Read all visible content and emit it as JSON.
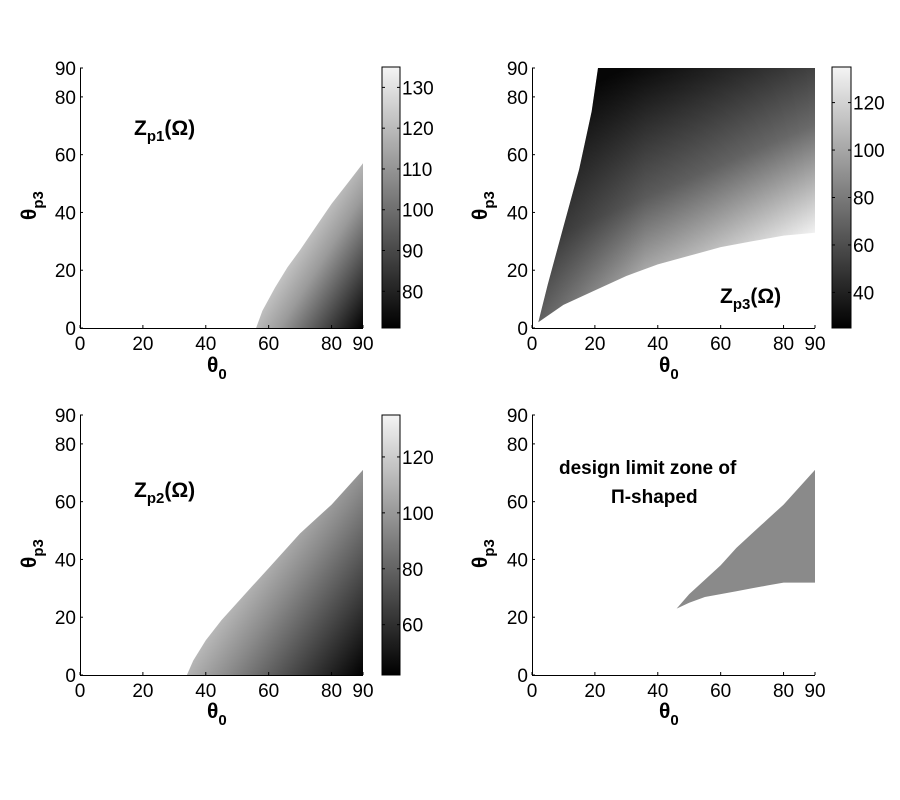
{
  "figure": {
    "background": "#ffffff"
  },
  "chart_data": [
    {
      "id": "zp1",
      "type": "heatmap",
      "position": "top-left",
      "annotation": "Z_p1(Ω)",
      "annotation_main": "Z",
      "annotation_sub": "p1",
      "annotation_tail": "(Ω)",
      "xlabel": "θ0",
      "ylabel": "θp3",
      "xlim": [
        0,
        90
      ],
      "ylim": [
        0,
        90
      ],
      "xticks": [
        0,
        20,
        40,
        60,
        80,
        90
      ],
      "yticks": [
        0,
        20,
        40,
        60,
        80,
        90
      ],
      "colormap": "gray",
      "colorbar": {
        "ticks": [
          80,
          90,
          100,
          110,
          120,
          130
        ],
        "range": [
          71,
          135
        ]
      },
      "region": {
        "description": "Valid region lies right of a curved boundary starting at θ0≈56 (θp3=0) and rising to θp3≈57 at θ0=90; darker (lower Z) toward bottom-right",
        "boundary": [
          [
            56,
            0
          ],
          [
            58,
            6
          ],
          [
            62,
            14
          ],
          [
            66,
            21
          ],
          [
            70,
            27
          ],
          [
            75,
            35
          ],
          [
            80,
            43
          ],
          [
            85,
            50
          ],
          [
            90,
            57
          ]
        ],
        "min_value_at": [
          90,
          0
        ],
        "max_value_along": "upper-left boundary"
      }
    },
    {
      "id": "zp3",
      "type": "heatmap",
      "position": "top-right",
      "annotation": "Z_p3(Ω)",
      "annotation_main": "Z",
      "annotation_sub": "p3",
      "annotation_tail": "(Ω)",
      "xlabel": "θ0",
      "ylabel": "θp3",
      "xlim": [
        0,
        90
      ],
      "ylim": [
        0,
        90
      ],
      "xticks": [
        0,
        20,
        40,
        60,
        80,
        90
      ],
      "yticks": [
        0,
        20,
        40,
        60,
        80,
        90
      ],
      "colormap": "gray",
      "colorbar": {
        "ticks": [
          40,
          60,
          80,
          100,
          120
        ],
        "range": [
          25,
          135
        ]
      },
      "region": {
        "description": "Valid region bounded on the left by a steep line from (2,2) to (21,90), on the bottom by a curve from (2,2) to (90,33); dark near left boundary, light near bottom boundary",
        "left_boundary": [
          [
            2,
            2
          ],
          [
            5,
            15
          ],
          [
            10,
            35
          ],
          [
            15,
            55
          ],
          [
            19,
            75
          ],
          [
            21,
            90
          ]
        ],
        "bottom_boundary": [
          [
            2,
            2
          ],
          [
            10,
            8
          ],
          [
            20,
            13
          ],
          [
            30,
            18
          ],
          [
            40,
            22
          ],
          [
            50,
            25
          ],
          [
            60,
            28
          ],
          [
            70,
            30
          ],
          [
            80,
            32
          ],
          [
            90,
            33
          ]
        ]
      }
    },
    {
      "id": "zp2",
      "type": "heatmap",
      "position": "bottom-left",
      "annotation": "Z_p2(Ω)",
      "annotation_main": "Z",
      "annotation_sub": "p2",
      "annotation_tail": "(Ω)",
      "xlabel": "θ0",
      "ylabel": "θp3",
      "xlim": [
        0,
        90
      ],
      "ylim": [
        0,
        90
      ],
      "xticks": [
        0,
        20,
        40,
        60,
        80,
        90
      ],
      "yticks": [
        0,
        20,
        40,
        60,
        80,
        90
      ],
      "colormap": "gray",
      "colorbar": {
        "ticks": [
          60,
          80,
          100,
          120
        ],
        "range": [
          42,
          135
        ]
      },
      "region": {
        "description": "Valid region right of a curved boundary starting at θ0≈34 (θp3=0) rising to θp3≈71 at θ0=90; darkest at bottom-right",
        "boundary": [
          [
            34,
            0
          ],
          [
            36,
            5
          ],
          [
            40,
            12
          ],
          [
            45,
            19
          ],
          [
            50,
            25
          ],
          [
            55,
            31
          ],
          [
            60,
            37
          ],
          [
            65,
            43
          ],
          [
            70,
            49
          ],
          [
            75,
            54
          ],
          [
            80,
            59
          ],
          [
            85,
            65
          ],
          [
            90,
            71
          ]
        ]
      }
    },
    {
      "id": "design-limit",
      "type": "area",
      "position": "bottom-right",
      "annotation_line1": "design limit zone of",
      "annotation_line2": "Π-shaped",
      "xlabel": "θ0",
      "ylabel": "θp3",
      "xlim": [
        0,
        90
      ],
      "ylim": [
        0,
        90
      ],
      "xticks": [
        0,
        20,
        40,
        60,
        80,
        90
      ],
      "yticks": [
        0,
        20,
        40,
        60,
        80,
        90
      ],
      "fill_color": "#8a8a8a",
      "region": {
        "description": "Gray wedge between upper boundary of Zp2 region and lower boundary of Zp3 region",
        "upper_boundary": [
          [
            46,
            23
          ],
          [
            50,
            28
          ],
          [
            55,
            33
          ],
          [
            60,
            38
          ],
          [
            65,
            44
          ],
          [
            70,
            49
          ],
          [
            75,
            54
          ],
          [
            80,
            59
          ],
          [
            85,
            65
          ],
          [
            90,
            71
          ]
        ],
        "lower_boundary": [
          [
            46,
            23
          ],
          [
            50,
            25
          ],
          [
            55,
            27
          ],
          [
            60,
            28
          ],
          [
            65,
            29
          ],
          [
            70,
            30
          ],
          [
            75,
            31
          ],
          [
            80,
            32
          ],
          [
            85,
            32
          ],
          [
            90,
            32
          ]
        ]
      }
    }
  ]
}
